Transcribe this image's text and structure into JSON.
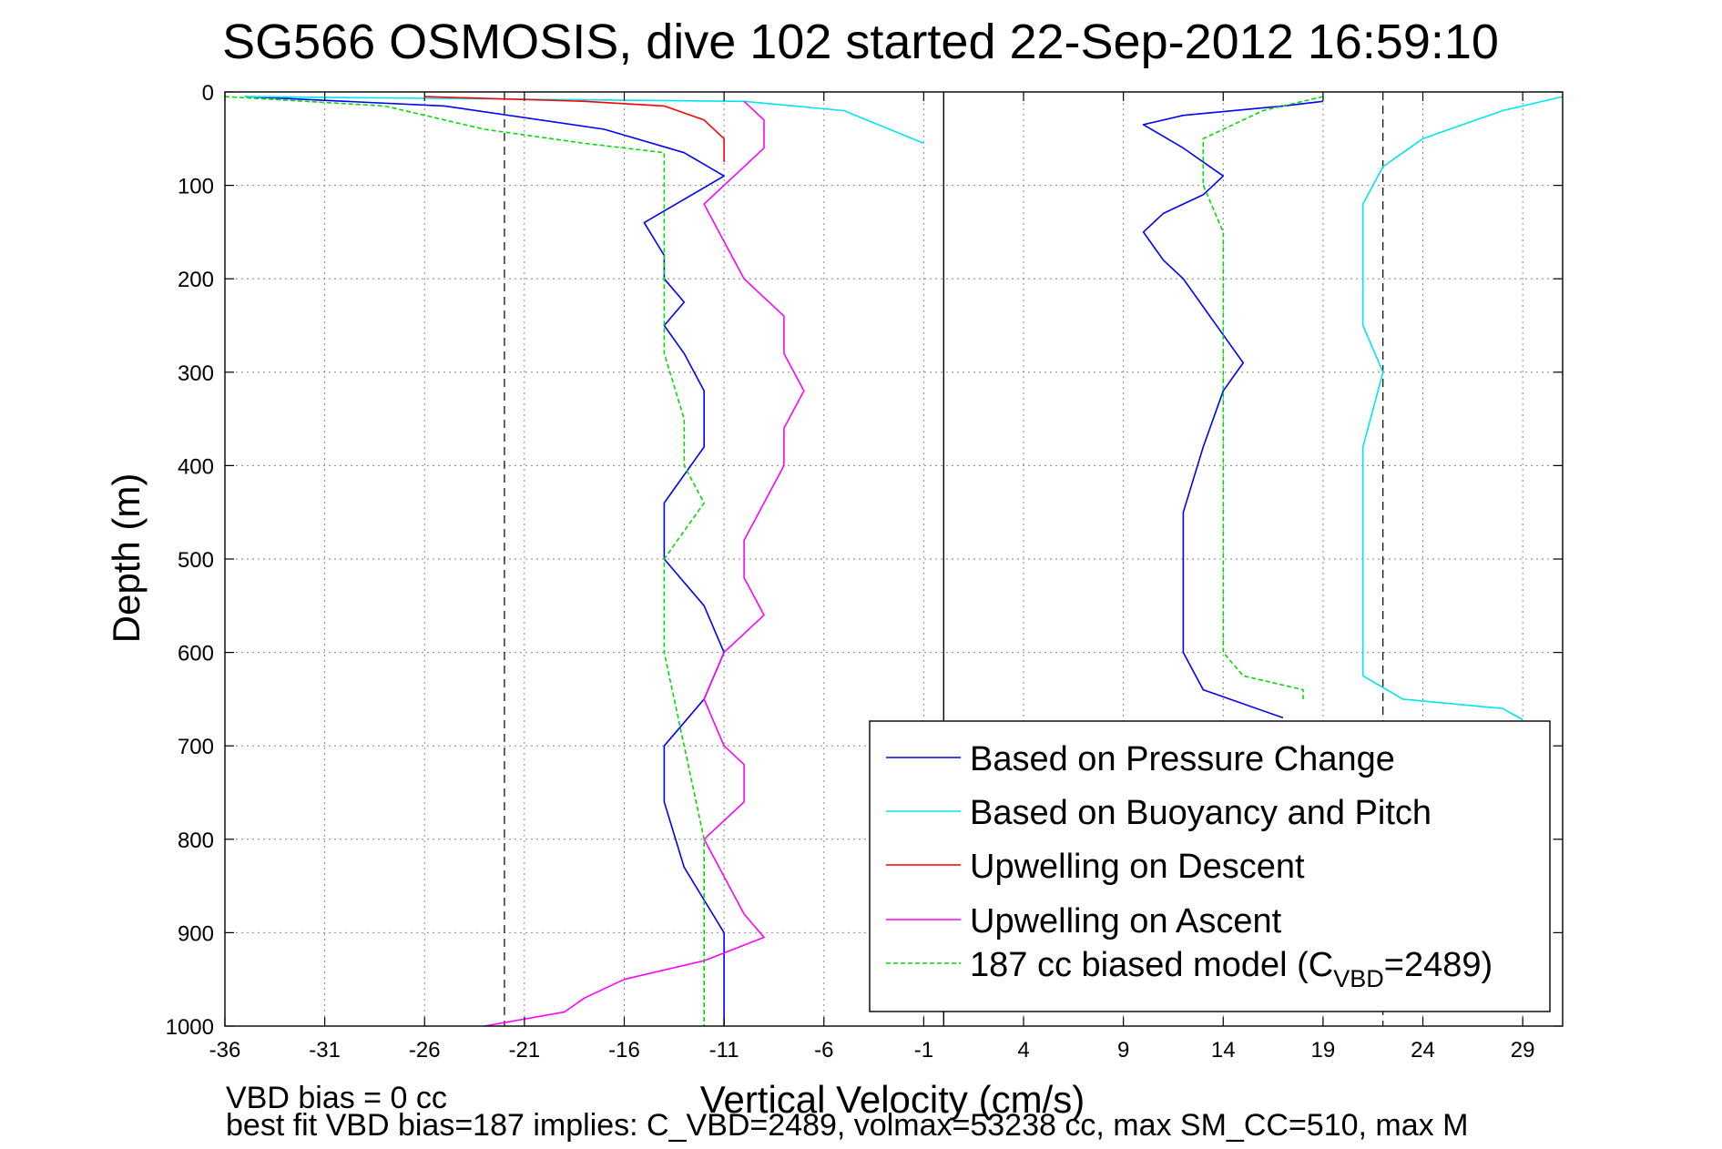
{
  "chart_data": {
    "type": "line",
    "title": "SG566 OSMOSIS, dive 102 started 22-Sep-2012 16:59:10",
    "xlabel": "Vertical Velocity (cm/s)",
    "ylabel": "Depth (m)",
    "xlim": [
      -36,
      31
    ],
    "ylim": [
      0,
      1000
    ],
    "y_reversed": true,
    "grid": true,
    "xticks": [
      -36,
      -31,
      -26,
      -21,
      -16,
      -11,
      -6,
      -1,
      4,
      9,
      14,
      19,
      24,
      29
    ],
    "yticks": [
      0,
      100,
      200,
      300,
      400,
      500,
      600,
      700,
      800,
      900,
      1000
    ],
    "reference_lines": {
      "zero": 0,
      "dashed": [
        -22,
        22
      ]
    },
    "legend_position": "lower-right",
    "series": [
      {
        "name": "Based on Pressure Change",
        "color": "#0000ff",
        "points": [
          [
            -35,
            5
          ],
          [
            -25,
            15
          ],
          [
            -17,
            40
          ],
          [
            -13,
            65
          ],
          [
            -11,
            90
          ],
          [
            -15,
            140
          ],
          [
            -14,
            175
          ],
          [
            -14,
            200
          ],
          [
            -13,
            225
          ],
          [
            -14,
            250
          ],
          [
            -13,
            280
          ],
          [
            -12,
            320
          ],
          [
            -12,
            380
          ],
          [
            -14,
            440
          ],
          [
            -14,
            500
          ],
          [
            -12,
            550
          ],
          [
            -11,
            600
          ],
          [
            -12,
            650
          ],
          [
            -14,
            700
          ],
          [
            -14,
            760
          ],
          [
            -13,
            830
          ],
          [
            -11,
            900
          ],
          [
            -11,
            950
          ],
          [
            -11,
            1000
          ],
          [
            19,
            10
          ],
          [
            17,
            15
          ],
          [
            12,
            25
          ],
          [
            10,
            35
          ],
          [
            12,
            60
          ],
          [
            14,
            90
          ],
          [
            13,
            110
          ],
          [
            11,
            130
          ],
          [
            10,
            150
          ],
          [
            11,
            180
          ],
          [
            12,
            200
          ],
          [
            13,
            230
          ],
          [
            14,
            260
          ],
          [
            15,
            290
          ],
          [
            14,
            320
          ],
          [
            13,
            380
          ],
          [
            12,
            450
          ],
          [
            12,
            500
          ],
          [
            12,
            550
          ],
          [
            12,
            600
          ],
          [
            13,
            640
          ],
          [
            17,
            670
          ]
        ]
      },
      {
        "name": "Based on Buoyancy and Pitch",
        "color": "#00e5ee",
        "points": [
          [
            -35,
            5
          ],
          [
            -10,
            10
          ],
          [
            -5,
            20
          ],
          [
            -1,
            55
          ],
          [
            31,
            5
          ],
          [
            28,
            20
          ],
          [
            24,
            50
          ],
          [
            22,
            80
          ],
          [
            21,
            120
          ],
          [
            21,
            180
          ],
          [
            21,
            250
          ],
          [
            22,
            300
          ],
          [
            21,
            380
          ],
          [
            21,
            450
          ],
          [
            21,
            550
          ],
          [
            21,
            625
          ],
          [
            23,
            650
          ],
          [
            28,
            660
          ],
          [
            29,
            672
          ]
        ]
      },
      {
        "name": "Upwelling on Descent",
        "color": "#ff0000",
        "points": [
          [
            -26,
            5
          ],
          [
            -18,
            10
          ],
          [
            -14,
            15
          ],
          [
            -12,
            30
          ],
          [
            -11,
            50
          ],
          [
            -11,
            75
          ]
        ]
      },
      {
        "name": "Upwelling on Ascent",
        "color": "#ff00ff",
        "points": [
          [
            -10,
            10
          ],
          [
            -9,
            30
          ],
          [
            -9,
            60
          ],
          [
            -10,
            80
          ],
          [
            -12,
            120
          ],
          [
            -11,
            160
          ],
          [
            -10,
            200
          ],
          [
            -8,
            240
          ],
          [
            -8,
            280
          ],
          [
            -7,
            320
          ],
          [
            -8,
            360
          ],
          [
            -8,
            400
          ],
          [
            -9,
            440
          ],
          [
            -10,
            480
          ],
          [
            -10,
            520
          ],
          [
            -9,
            560
          ],
          [
            -11,
            600
          ],
          [
            -12,
            650
          ],
          [
            -11,
            700
          ],
          [
            -10,
            720
          ],
          [
            -10,
            760
          ],
          [
            -12,
            800
          ],
          [
            -11,
            840
          ],
          [
            -10,
            880
          ],
          [
            -9,
            905
          ],
          [
            -12,
            930
          ],
          [
            -16,
            950
          ],
          [
            -18,
            970
          ],
          [
            -19,
            985
          ],
          [
            -23,
            1000
          ]
        ]
      },
      {
        "name": "187 cc biased model (C",
        "name_sub": "VBD",
        "name_tail": "=2489)",
        "color": "#00dd00",
        "dashed": true,
        "points": [
          [
            -36,
            5
          ],
          [
            -28,
            15
          ],
          [
            -23,
            40
          ],
          [
            -18,
            55
          ],
          [
            -14,
            65
          ],
          [
            -14,
            100
          ],
          [
            -14,
            150
          ],
          [
            -14,
            200
          ],
          [
            -14,
            280
          ],
          [
            -13,
            350
          ],
          [
            -13,
            400
          ],
          [
            -12,
            440
          ],
          [
            -14,
            500
          ],
          [
            -14,
            550
          ],
          [
            -14,
            600
          ],
          [
            -13,
            700
          ],
          [
            -12,
            800
          ],
          [
            -12,
            900
          ],
          [
            -12,
            1000
          ],
          [
            19,
            5
          ],
          [
            16,
            20
          ],
          [
            13,
            50
          ],
          [
            13,
            100
          ],
          [
            14,
            150
          ],
          [
            14,
            200
          ],
          [
            14,
            300
          ],
          [
            14,
            400
          ],
          [
            14,
            500
          ],
          [
            14,
            600
          ],
          [
            15,
            625
          ],
          [
            18,
            640
          ],
          [
            18,
            650
          ]
        ]
      }
    ],
    "annotations": [
      "VBD bias = 0 cc",
      "best fit VBD bias=187 implies: C_VBD=2489, volmax=53238 cc, max SM_CC=510, max M"
    ]
  }
}
